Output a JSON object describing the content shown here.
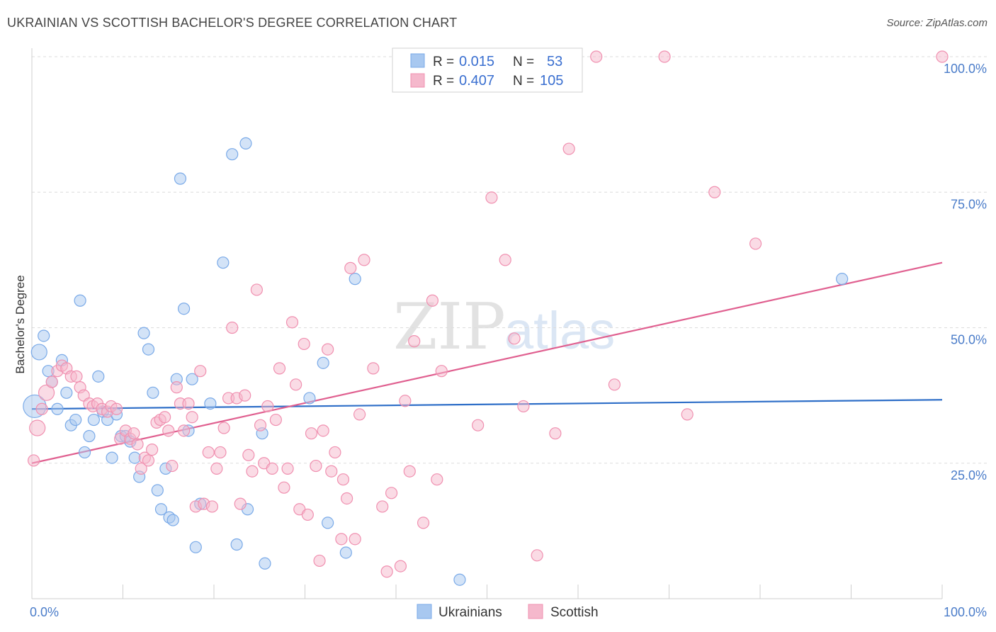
{
  "header": {
    "title": "UKRAINIAN VS SCOTTISH BACHELOR'S DEGREE CORRELATION CHART",
    "source": "Source: ZipAtlas.com"
  },
  "watermark": {
    "zip": "ZIP",
    "atlas": "atlas"
  },
  "legend_top": {
    "rows": [
      {
        "r_label": "R =",
        "r_value": "0.015",
        "n_label": "N =",
        "n_value": "53",
        "color": "#a8c8f0"
      },
      {
        "r_label": "R =",
        "r_value": "0.407",
        "n_label": "N =",
        "n_value": "105",
        "color": "#f5b8cc"
      }
    ]
  },
  "chart_data": {
    "type": "scatter",
    "title": "UKRAINIAN VS SCOTTISH BACHELOR'S DEGREE CORRELATION CHART",
    "xlabel": "",
    "ylabel": "Bachelor's Degree",
    "xlim": [
      0,
      100
    ],
    "ylim": [
      0,
      100
    ],
    "x_tick_labels": [
      "0.0%",
      "100.0%"
    ],
    "y_ticks": [
      25,
      50,
      75,
      100
    ],
    "y_tick_labels": [
      "25.0%",
      "50.0%",
      "75.0%",
      "100.0%"
    ],
    "grid": true,
    "legend": [
      "Ukrainians",
      "Scottish"
    ],
    "series": [
      {
        "name": "Ukrainians",
        "color": "#7aaae8",
        "fill": "#a8c8f0",
        "trend": {
          "x": [
            0,
            100
          ],
          "y": [
            35.0,
            36.7
          ],
          "color": "#2f6fc8"
        },
        "points": [
          [
            0.3,
            35.5,
            "l"
          ],
          [
            0.8,
            45.5,
            "m"
          ],
          [
            1.3,
            48.5,
            "s"
          ],
          [
            1.8,
            42.0,
            "s"
          ],
          [
            2.2,
            40.0,
            "s"
          ],
          [
            2.8,
            35.0,
            "s"
          ],
          [
            3.3,
            44.0,
            "s"
          ],
          [
            3.8,
            38.0,
            "s"
          ],
          [
            4.3,
            32.0,
            "s"
          ],
          [
            4.8,
            33.0,
            "s"
          ],
          [
            5.3,
            55.0,
            "s"
          ],
          [
            5.8,
            27.0,
            "s"
          ],
          [
            6.3,
            30.0,
            "s"
          ],
          [
            6.8,
            33.0,
            "s"
          ],
          [
            7.3,
            41.0,
            "s"
          ],
          [
            7.8,
            34.5,
            "s"
          ],
          [
            8.3,
            33.0,
            "s"
          ],
          [
            8.8,
            26.0,
            "s"
          ],
          [
            9.3,
            34.0,
            "s"
          ],
          [
            9.8,
            30.0,
            "s"
          ],
          [
            10.3,
            30.0,
            "s"
          ],
          [
            10.8,
            29.0,
            "s"
          ],
          [
            11.3,
            26.0,
            "s"
          ],
          [
            11.8,
            22.5,
            "s"
          ],
          [
            12.3,
            49.0,
            "s"
          ],
          [
            12.8,
            46.0,
            "s"
          ],
          [
            13.3,
            38.0,
            "s"
          ],
          [
            13.8,
            20.0,
            "s"
          ],
          [
            14.2,
            16.5,
            "s"
          ],
          [
            14.7,
            24.0,
            "s"
          ],
          [
            15.1,
            15.0,
            "s"
          ],
          [
            15.5,
            14.5,
            "s"
          ],
          [
            15.9,
            40.5,
            "s"
          ],
          [
            16.3,
            77.5,
            "s"
          ],
          [
            16.7,
            53.5,
            "s"
          ],
          [
            17.2,
            31.0,
            "s"
          ],
          [
            17.6,
            40.5,
            "s"
          ],
          [
            18.0,
            9.5,
            "s"
          ],
          [
            18.5,
            17.5,
            "s"
          ],
          [
            19.6,
            36.0,
            "s"
          ],
          [
            21.0,
            62.0,
            "s"
          ],
          [
            22.0,
            82.0,
            "s"
          ],
          [
            22.5,
            10.0,
            "s"
          ],
          [
            23.5,
            84.0,
            "s"
          ],
          [
            23.7,
            16.5,
            "s"
          ],
          [
            25.3,
            30.5,
            "s"
          ],
          [
            25.6,
            6.5,
            "s"
          ],
          [
            30.5,
            37.0,
            "s"
          ],
          [
            32.0,
            43.5,
            "s"
          ],
          [
            32.5,
            14.0,
            "s"
          ],
          [
            34.5,
            8.5,
            "s"
          ],
          [
            35.5,
            59.0,
            "s"
          ],
          [
            47.0,
            3.5,
            "s"
          ],
          [
            89.0,
            59.0,
            "s"
          ]
        ]
      },
      {
        "name": "Scottish",
        "color": "#f090b0",
        "fill": "#f5b8cc",
        "trend": {
          "x": [
            0,
            100
          ],
          "y": [
            25.0,
            62.0
          ],
          "color": "#e06090"
        },
        "points": [
          [
            0.2,
            25.5,
            "s"
          ],
          [
            0.6,
            31.5,
            "m"
          ],
          [
            1.1,
            35.0,
            "s"
          ],
          [
            1.6,
            38.0,
            "m"
          ],
          [
            2.2,
            40.0,
            "s"
          ],
          [
            2.8,
            42.0,
            "s"
          ],
          [
            3.3,
            43.0,
            "s"
          ],
          [
            3.8,
            42.5,
            "s"
          ],
          [
            4.3,
            41.0,
            "s"
          ],
          [
            4.9,
            41.0,
            "s"
          ],
          [
            5.3,
            39.0,
            "s"
          ],
          [
            5.7,
            37.5,
            "s"
          ],
          [
            6.3,
            36.0,
            "s"
          ],
          [
            6.7,
            35.5,
            "s"
          ],
          [
            7.2,
            36.0,
            "s"
          ],
          [
            7.7,
            35.0,
            "s"
          ],
          [
            8.3,
            34.5,
            "s"
          ],
          [
            8.7,
            35.5,
            "s"
          ],
          [
            9.3,
            35.0,
            "s"
          ],
          [
            9.7,
            29.5,
            "s"
          ],
          [
            10.3,
            31.0,
            "s"
          ],
          [
            10.8,
            29.5,
            "s"
          ],
          [
            11.2,
            30.5,
            "s"
          ],
          [
            11.6,
            28.5,
            "s"
          ],
          [
            12.0,
            24.0,
            "s"
          ],
          [
            12.4,
            26.0,
            "s"
          ],
          [
            12.8,
            25.5,
            "s"
          ],
          [
            13.2,
            27.5,
            "s"
          ],
          [
            13.7,
            32.5,
            "s"
          ],
          [
            14.1,
            33.0,
            "s"
          ],
          [
            14.6,
            33.5,
            "s"
          ],
          [
            15.0,
            31.0,
            "s"
          ],
          [
            15.4,
            24.5,
            "s"
          ],
          [
            15.9,
            39.0,
            "s"
          ],
          [
            16.3,
            36.0,
            "s"
          ],
          [
            16.7,
            31.0,
            "s"
          ],
          [
            17.2,
            36.0,
            "s"
          ],
          [
            17.6,
            33.5,
            "s"
          ],
          [
            18.0,
            17.0,
            "s"
          ],
          [
            18.5,
            42.0,
            "s"
          ],
          [
            18.9,
            17.5,
            "s"
          ],
          [
            19.4,
            27.0,
            "s"
          ],
          [
            19.8,
            17.0,
            "s"
          ],
          [
            20.3,
            24.0,
            "s"
          ],
          [
            20.7,
            27.0,
            "s"
          ],
          [
            21.1,
            31.5,
            "s"
          ],
          [
            21.6,
            37.0,
            "s"
          ],
          [
            22.0,
            50.0,
            "s"
          ],
          [
            22.5,
            37.0,
            "s"
          ],
          [
            22.9,
            17.5,
            "s"
          ],
          [
            23.4,
            37.5,
            "s"
          ],
          [
            23.8,
            26.5,
            "s"
          ],
          [
            24.2,
            23.5,
            "s"
          ],
          [
            24.7,
            57.0,
            "s"
          ],
          [
            25.1,
            32.0,
            "s"
          ],
          [
            25.5,
            25.0,
            "s"
          ],
          [
            25.9,
            35.5,
            "s"
          ],
          [
            26.4,
            24.0,
            "s"
          ],
          [
            26.8,
            33.0,
            "s"
          ],
          [
            27.2,
            42.5,
            "s"
          ],
          [
            27.7,
            20.5,
            "s"
          ],
          [
            28.1,
            24.0,
            "s"
          ],
          [
            28.6,
            51.0,
            "s"
          ],
          [
            29.0,
            39.5,
            "s"
          ],
          [
            29.4,
            16.5,
            "s"
          ],
          [
            29.9,
            47.0,
            "s"
          ],
          [
            30.3,
            15.5,
            "s"
          ],
          [
            30.7,
            30.5,
            "s"
          ],
          [
            31.2,
            24.5,
            "s"
          ],
          [
            31.6,
            7.0,
            "s"
          ],
          [
            32.0,
            31.0,
            "s"
          ],
          [
            32.5,
            46.0,
            "s"
          ],
          [
            32.9,
            23.5,
            "s"
          ],
          [
            33.3,
            27.0,
            "s"
          ],
          [
            34.0,
            11.0,
            "s"
          ],
          [
            34.2,
            22.0,
            "s"
          ],
          [
            34.6,
            18.5,
            "s"
          ],
          [
            35.0,
            61.0,
            "s"
          ],
          [
            35.5,
            11.0,
            "s"
          ],
          [
            36.0,
            34.0,
            "s"
          ],
          [
            36.5,
            62.5,
            "s"
          ],
          [
            37.5,
            42.5,
            "s"
          ],
          [
            38.5,
            17.0,
            "s"
          ],
          [
            39.0,
            5.0,
            "s"
          ],
          [
            39.5,
            19.5,
            "s"
          ],
          [
            40.5,
            6.0,
            "s"
          ],
          [
            41.0,
            36.5,
            "s"
          ],
          [
            41.5,
            23.5,
            "s"
          ],
          [
            42.0,
            47.5,
            "s"
          ],
          [
            43.0,
            14.0,
            "s"
          ],
          [
            44.0,
            55.0,
            "s"
          ],
          [
            44.5,
            22.0,
            "s"
          ],
          [
            45.0,
            42.0,
            "s"
          ],
          [
            49.0,
            32.0,
            "s"
          ],
          [
            50.5,
            74.0,
            "s"
          ],
          [
            52.0,
            62.5,
            "s"
          ],
          [
            53.0,
            48.0,
            "s"
          ],
          [
            54.0,
            35.5,
            "s"
          ],
          [
            55.5,
            8.0,
            "s"
          ],
          [
            57.5,
            30.5,
            "s"
          ],
          [
            59.0,
            83.0,
            "s"
          ],
          [
            62.0,
            100.0,
            "s"
          ],
          [
            64.0,
            39.5,
            "s"
          ],
          [
            69.5,
            100.0,
            "s"
          ],
          [
            72.0,
            34.0,
            "s"
          ],
          [
            75.0,
            75.0,
            "s"
          ],
          [
            79.5,
            65.5,
            "s"
          ],
          [
            100.0,
            100.0,
            "s"
          ]
        ]
      }
    ]
  }
}
